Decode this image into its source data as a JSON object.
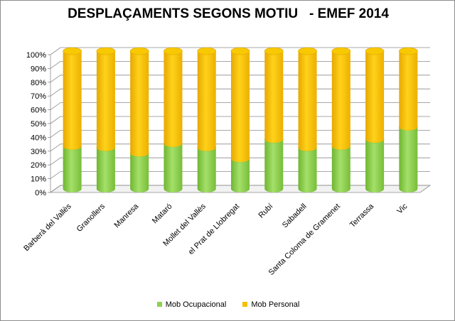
{
  "chart_data": {
    "type": "bar",
    "stacked": true,
    "title": "DESPLAÇAMENTS SEGONS MOTIU   - EMEF 2014",
    "categories": [
      "Barberà del Vallès",
      "Granollers",
      "Manresa",
      "Mataró",
      "Mollet del Vallès",
      "el Prat de Llobregat",
      "Rubí",
      "Sabadell",
      "Santa Coloma de Gramenet",
      "Terrassa",
      "Vic"
    ],
    "series": [
      {
        "name": "Mob Ocupacional",
        "color": "#8fd14f",
        "values": [
          31,
          30,
          26,
          33,
          30,
          22,
          36,
          30,
          31,
          36,
          45
        ]
      },
      {
        "name": "Mob Personal",
        "color": "#f5c000",
        "values": [
          69,
          70,
          74,
          67,
          70,
          78,
          64,
          70,
          69,
          64,
          55
        ]
      }
    ],
    "y_ticks": [
      "0%",
      "10%",
      "20%",
      "30%",
      "40%",
      "50%",
      "60%",
      "70%",
      "80%",
      "90%",
      "100%"
    ],
    "ylim": [
      0,
      100
    ],
    "grid": true,
    "legend_position": "bottom"
  }
}
